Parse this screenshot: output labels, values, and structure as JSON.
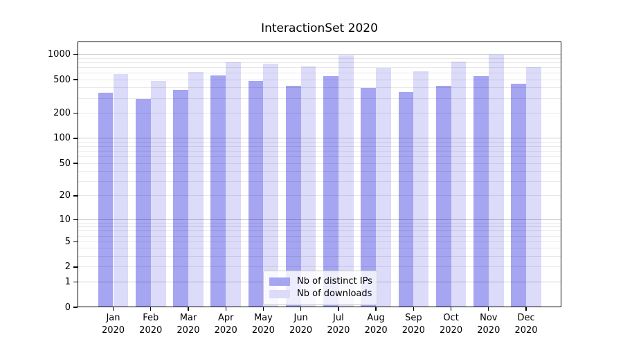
{
  "chart_data": {
    "type": "bar",
    "title": "InteractionSet 2020",
    "categories": [
      "Jan 2020",
      "Feb 2020",
      "Mar 2020",
      "Apr 2020",
      "May 2020",
      "Jun 2020",
      "Jul 2020",
      "Aug 2020",
      "Sep 2020",
      "Oct 2020",
      "Nov 2020",
      "Dec 2020"
    ],
    "series": [
      {
        "name": "Nb of distinct IPs",
        "color": "#a5a5f2",
        "values": [
          350,
          295,
          380,
          560,
          480,
          420,
          555,
          400,
          355,
          425,
          555,
          450
        ]
      },
      {
        "name": "Nb of downloads",
        "color": "#dcdbf9",
        "values": [
          580,
          480,
          615,
          805,
          775,
          725,
          970,
          695,
          625,
          820,
          1000,
          710
        ]
      }
    ],
    "xlabel": "",
    "ylabel": "",
    "y_scale": "symlog",
    "y_ticks": [
      0,
      1,
      2,
      5,
      10,
      20,
      50,
      100,
      200,
      500,
      1000
    ],
    "y_major_gridlines": [
      1,
      10,
      100,
      1000
    ],
    "y_max": 1420,
    "grid": "horizontal, major at powers of 10 plus light minors at 2-9 multiples",
    "legend_position": "lower center",
    "legend_labels": [
      "Nb of distinct IPs",
      "Nb of downloads"
    ]
  }
}
